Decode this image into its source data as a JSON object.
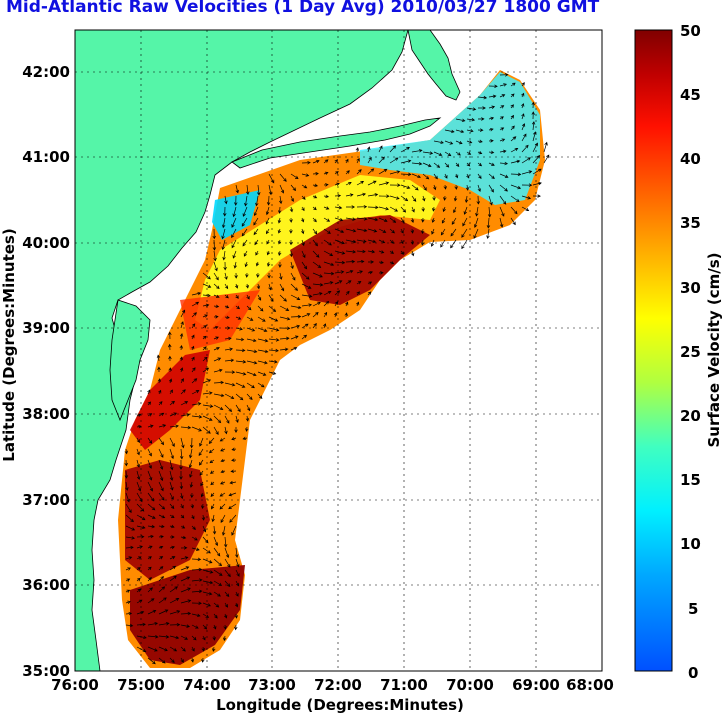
{
  "title": "Mid-Atlantic Raw Velocities (1 Day Avg) 2010/03/27 1800 GMT",
  "map": {
    "xlabel": "Longitude (Degrees:Minutes)",
    "ylabel": "Latitude (Degrees:Minutes)",
    "x_ticks": [
      "76:00",
      "75:00",
      "74:00",
      "73:00",
      "72:00",
      "71:00",
      "70:00",
      "69:00",
      "68:00"
    ],
    "y_ticks": [
      "42:00",
      "41:00",
      "40:00",
      "39:00",
      "38:00",
      "37:00",
      "36:00",
      "35:00"
    ],
    "lon_range": [
      -76,
      -68
    ],
    "lat_range": [
      35,
      42.5
    ],
    "land_color": "#55f5a8",
    "grid": true
  },
  "colorbar": {
    "label": "Surface Velocity (cm/s)",
    "ticks": [
      "50",
      "45",
      "40",
      "35",
      "30",
      "25",
      "20",
      "15",
      "10",
      "5",
      "0"
    ],
    "range": [
      0,
      50
    ]
  },
  "icons": {
    "vectors": "velocity-arrow-field"
  }
}
